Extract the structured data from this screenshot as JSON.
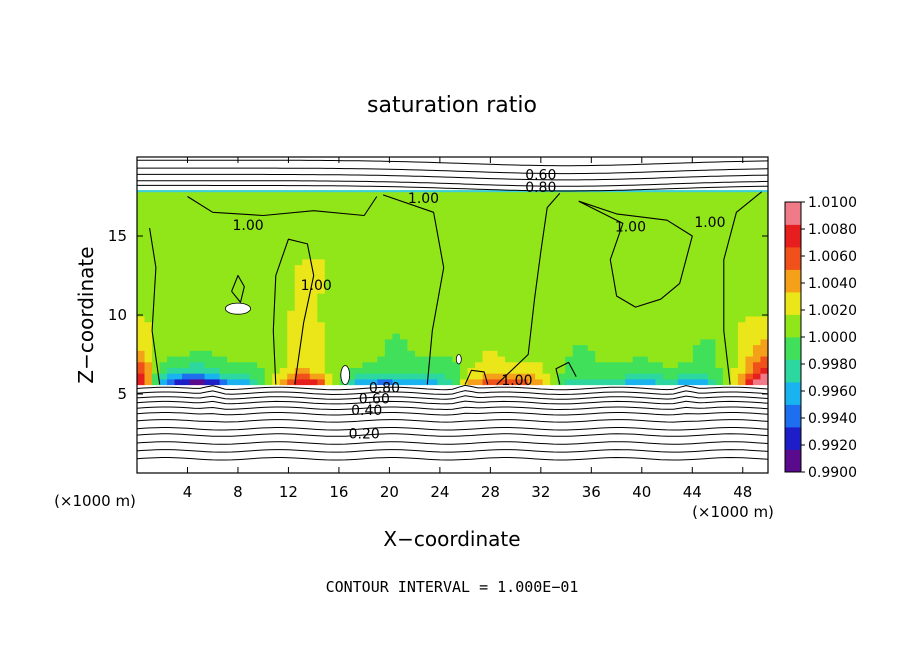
{
  "chart_data": {
    "type": "heatmap",
    "title": "saturation ratio",
    "xlabel": "X−coordinate",
    "ylabel": "Z−coordinate",
    "x_unit_left": "(×1000 m)",
    "x_unit_right": "(×1000 m)",
    "xlim": [
      0,
      50
    ],
    "ylim": [
      0,
      20
    ],
    "x_ticks": [
      4,
      8,
      12,
      16,
      20,
      24,
      28,
      32,
      36,
      40,
      44,
      48
    ],
    "y_ticks": [
      5,
      10,
      15
    ],
    "footer": "CONTOUR INTERVAL = 1.000E−01",
    "colorbar": {
      "min": 0.99,
      "max": 1.01,
      "tick_labels": [
        "1.0100",
        "1.0080",
        "1.0060",
        "1.0040",
        "1.0020",
        "1.0000",
        "0.9980",
        "0.9960",
        "0.9940",
        "0.9920",
        "0.9900"
      ],
      "colors": [
        "#5a0a8c",
        "#1e1ec8",
        "#1e6ef0",
        "#19b4f0",
        "#2dd7a0",
        "#41e05a",
        "#91e619",
        "#ebe619",
        "#f5a019",
        "#f05019",
        "#e61e1e",
        "#f07a87"
      ]
    },
    "cloud_layer_z": [
      5.6,
      17.9
    ],
    "contour_labels": [
      {
        "text": "0.60",
        "x": 32.0,
        "z": 18.9
      },
      {
        "text": "0.80",
        "x": 32.0,
        "z": 18.1
      },
      {
        "text": "1.00",
        "x": 22.7,
        "z": 17.4
      },
      {
        "text": "1.00",
        "x": 8.8,
        "z": 15.7
      },
      {
        "text": "1.00",
        "x": 39.1,
        "z": 15.6
      },
      {
        "text": "1.00",
        "x": 45.4,
        "z": 15.9
      },
      {
        "text": "1.00",
        "x": 14.2,
        "z": 11.9
      },
      {
        "text": "1.00",
        "x": 30.1,
        "z": 5.9
      },
      {
        "text": "0.80",
        "x": 19.6,
        "z": 5.4
      },
      {
        "text": "0.60",
        "x": 18.8,
        "z": 4.7
      },
      {
        "text": "0.40",
        "x": 18.2,
        "z": 4.0
      },
      {
        "text": "0.20",
        "x": 18.0,
        "z": 2.5
      }
    ]
  }
}
